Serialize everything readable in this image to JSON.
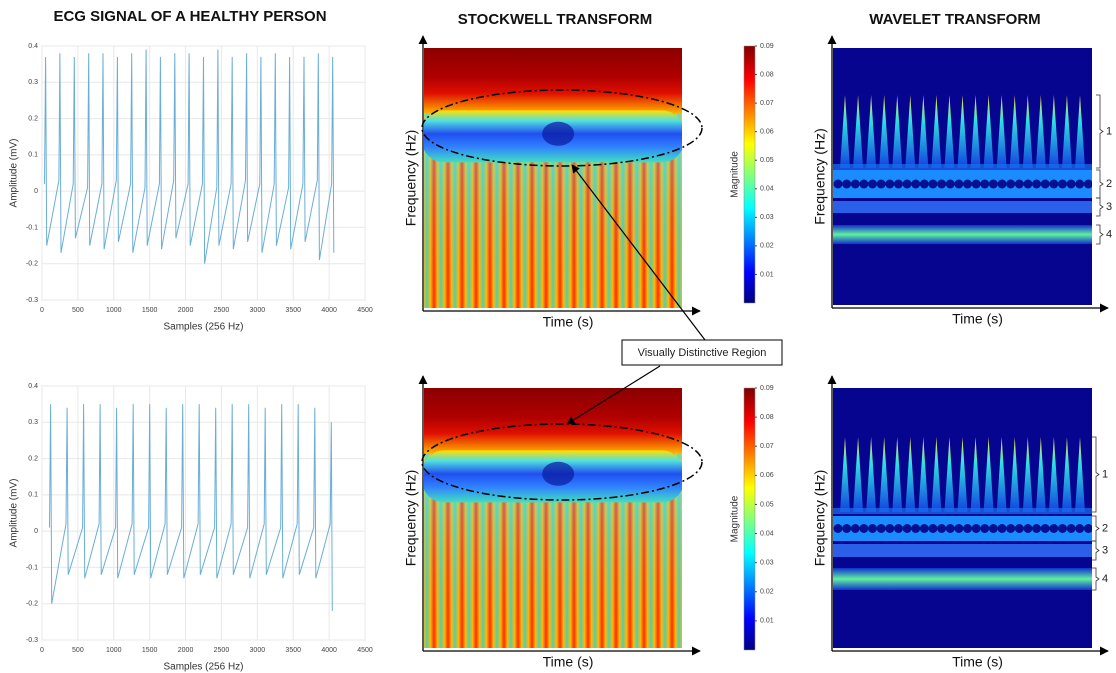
{
  "chart_data": [
    {
      "type": "line",
      "title": "ECG SIGNAL OF A HEALTHY PERSON",
      "xlabel": "Samples (256 Hz)",
      "ylabel": "Amplitude (mV)",
      "color": "#6aaed6",
      "grid": true,
      "xlim": [
        0,
        4500
      ],
      "ylim": [
        -0.3,
        0.4
      ],
      "xticks": [
        0,
        500,
        1000,
        1500,
        2000,
        2500,
        3000,
        3500,
        4000,
        4500
      ],
      "yticks": [
        -0.3,
        -0.2,
        -0.1,
        0,
        0.1,
        0.2,
        0.3,
        0.4
      ],
      "x": [
        35,
        50,
        65,
        235,
        250,
        265,
        435,
        450,
        465,
        635,
        650,
        665,
        835,
        850,
        865,
        1035,
        1050,
        1065,
        1235,
        1250,
        1265,
        1435,
        1450,
        1465,
        1635,
        1650,
        1665,
        1835,
        1850,
        1865,
        2035,
        2050,
        2065,
        2235,
        2250,
        2265,
        2435,
        2450,
        2465,
        2635,
        2650,
        2665,
        2835,
        2850,
        2865,
        3035,
        3050,
        3065,
        3235,
        3250,
        3265,
        3435,
        3450,
        3465,
        3635,
        3650,
        3665,
        3835,
        3850,
        3865,
        4035,
        4050,
        4065
      ],
      "y": [
        0.02,
        0.37,
        -0.15,
        0.03,
        0.38,
        -0.17,
        0.02,
        0.37,
        -0.13,
        0.01,
        0.38,
        -0.15,
        0.02,
        0.38,
        -0.16,
        0.03,
        0.37,
        -0.14,
        0.02,
        0.38,
        -0.17,
        0.01,
        0.39,
        -0.15,
        0.02,
        0.37,
        -0.16,
        0.03,
        0.38,
        -0.13,
        0.02,
        0.38,
        -0.15,
        0.02,
        0.37,
        -0.2,
        0.01,
        0.39,
        -0.15,
        0.02,
        0.37,
        -0.16,
        0.03,
        0.38,
        -0.14,
        0.02,
        0.37,
        -0.17,
        0.02,
        0.38,
        -0.15,
        0.01,
        0.37,
        -0.16,
        0.02,
        0.37,
        -0.14,
        0.03,
        0.38,
        -0.19,
        0.02,
        0.37,
        -0.17
      ]
    },
    {
      "type": "heatmap",
      "title": "STOCKWELL TRANSFORM",
      "xlabel": "Time (s)",
      "ylabel": "Frequency (Hz)",
      "colorbar_label": "Magnitude",
      "clim": [
        0,
        0.09
      ],
      "cticks": [
        0.01,
        0.02,
        0.03,
        0.04,
        0.05,
        0.06,
        0.07,
        0.08,
        0.09
      ]
    },
    {
      "type": "heatmap",
      "title": "WAVELET TRANSFORM",
      "xlabel": "Time (s)",
      "ylabel": "Frequency (Hz)",
      "band_labels": [
        "1",
        "2",
        "3",
        "4"
      ]
    },
    {
      "type": "line",
      "xlabel": "Samples (256 Hz)",
      "ylabel": "Amplitude (mV)",
      "color": "#6aaed6",
      "grid": true,
      "xlim": [
        0,
        4500
      ],
      "ylim": [
        -0.3,
        0.4
      ],
      "xticks": [
        0,
        500,
        1000,
        1500,
        2000,
        2500,
        3000,
        3500,
        4000,
        4500
      ],
      "yticks": [
        -0.3,
        -0.2,
        -0.1,
        0,
        0.1,
        0.2,
        0.3,
        0.4
      ],
      "x": [
        105,
        120,
        135,
        335,
        350,
        365,
        565,
        580,
        595,
        795,
        810,
        825,
        1025,
        1040,
        1055,
        1255,
        1270,
        1285,
        1485,
        1500,
        1515,
        1715,
        1730,
        1745,
        1945,
        1960,
        1975,
        2175,
        2190,
        2205,
        2405,
        2420,
        2435,
        2635,
        2650,
        2665,
        2865,
        2880,
        2895,
        3095,
        3110,
        3125,
        3325,
        3340,
        3355,
        3555,
        3570,
        3585,
        3785,
        3800,
        3815,
        4015,
        4030,
        4045
      ],
      "y": [
        0.01,
        0.35,
        -0.2,
        0.02,
        0.34,
        -0.12,
        0.01,
        0.35,
        -0.13,
        0.02,
        0.35,
        -0.12,
        0.01,
        0.34,
        -0.13,
        0.02,
        0.35,
        -0.12,
        0.01,
        0.35,
        -0.13,
        0.02,
        0.34,
        -0.12,
        0.01,
        0.35,
        -0.13,
        0.02,
        0.35,
        -0.12,
        0.01,
        0.34,
        -0.13,
        0.02,
        0.35,
        -0.12,
        0.01,
        0.35,
        -0.13,
        0.02,
        0.34,
        -0.12,
        0.01,
        0.35,
        -0.13,
        0.02,
        0.35,
        -0.12,
        0.01,
        0.34,
        -0.13,
        0.02,
        0.3,
        -0.22
      ]
    },
    {
      "type": "heatmap",
      "xlabel": "Time (s)",
      "ylabel": "Frequency (Hz)",
      "colorbar_label": "Magnitude",
      "clim": [
        0,
        0.09
      ],
      "cticks": [
        0.01,
        0.02,
        0.03,
        0.04,
        0.05,
        0.06,
        0.07,
        0.08,
        0.09
      ]
    },
    {
      "type": "heatmap",
      "xlabel": "Time (s)",
      "ylabel": "Frequency (Hz)",
      "band_labels": [
        "1",
        "2",
        "3",
        "4"
      ]
    }
  ],
  "annotation": "Visually Distinctive Region"
}
